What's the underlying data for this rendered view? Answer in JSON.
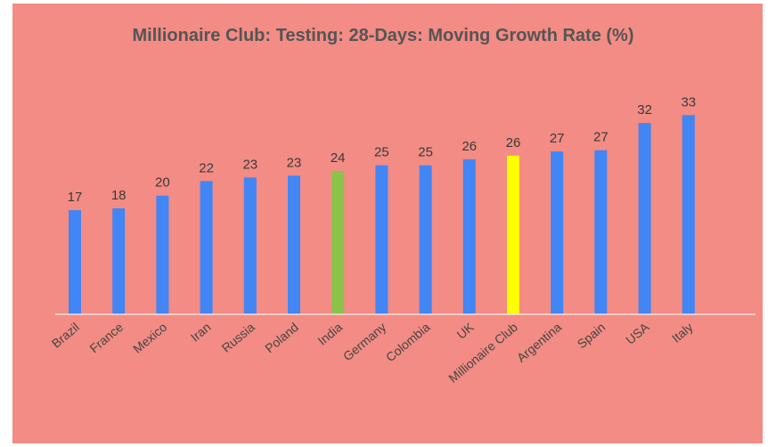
{
  "chart_data": {
    "type": "bar",
    "title": "Millionaire Club: Testing: 28-Days: Moving Growth Rate (%)",
    "categories": [
      "Brazil",
      "France",
      "Mexico",
      "Iran",
      "Russia",
      "Poland",
      "India",
      "Germany",
      "Colombia",
      "UK",
      "Millionaire Club",
      "Argentina",
      "Spain",
      "USA",
      "Italy"
    ],
    "values": [
      17.2,
      17.5,
      19.6,
      22,
      22.6,
      22.9,
      23.7,
      24.6,
      24.6,
      25.6,
      26.2,
      26.9,
      27.1,
      31.6,
      32.9
    ],
    "value_labels": [
      "17",
      "18",
      "20",
      "22",
      "23",
      "23",
      "24",
      "25",
      "25",
      "26",
      "26",
      "27",
      "27",
      "32",
      "33"
    ],
    "colors": [
      "#4285f4",
      "#4285f4",
      "#4285f4",
      "#4285f4",
      "#4285f4",
      "#4285f4",
      "#8bc34a",
      "#4285f4",
      "#4285f4",
      "#4285f4",
      "#ffff00",
      "#4285f4",
      "#4285f4",
      "#4285f4",
      "#4285f4"
    ],
    "ylim": [
      0,
      35
    ]
  }
}
